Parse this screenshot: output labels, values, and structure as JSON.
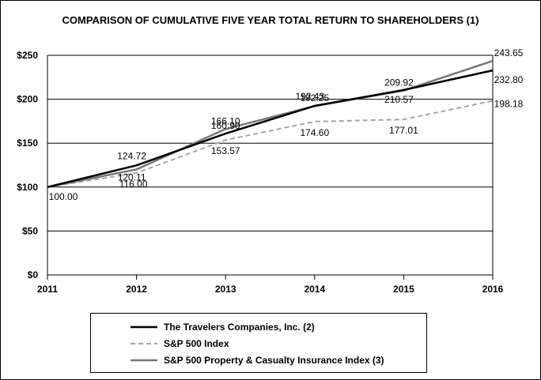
{
  "chart_data": {
    "type": "line",
    "title": "COMPARISON OF CUMULATIVE FIVE YEAR TOTAL RETURN TO SHAREHOLDERS (1)",
    "xlabel": "",
    "ylabel": "",
    "categories": [
      "2011",
      "2012",
      "2013",
      "2014",
      "2015",
      "2016"
    ],
    "ylim": [
      0,
      250
    ],
    "yticks": [
      "$0",
      "$50",
      "$100",
      "$150",
      "$200",
      "$250"
    ],
    "grid": true,
    "legend_position": "bottom",
    "series": [
      {
        "name": "The Travelers Companies, Inc. (2)",
        "values": [
          100.0,
          124.72,
          160.9,
          192.43,
          210.57,
          232.8
        ],
        "labels": [
          "100.00",
          "124.72",
          "160.90",
          "192.43",
          "210.57",
          "232.80"
        ],
        "color": "#000000",
        "style": "solid"
      },
      {
        "name": "S&P 500 Index",
        "values": [
          100.0,
          116.0,
          153.57,
          174.6,
          177.01,
          198.18
        ],
        "labels": [
          "",
          "116.00",
          "153.57",
          "174.60",
          "177.01",
          "198.18"
        ],
        "color": "#a6a6a6",
        "style": "dashed"
      },
      {
        "name": "S&P 500 Property & Casualty Insurance Index (3)",
        "values": [
          100.0,
          120.11,
          166.1,
          192.25,
          209.92,
          243.65
        ],
        "labels": [
          "",
          "120.11",
          "166.10",
          "192.25",
          "209.92",
          "243.65"
        ],
        "color": "#777777",
        "style": "solid"
      }
    ]
  }
}
